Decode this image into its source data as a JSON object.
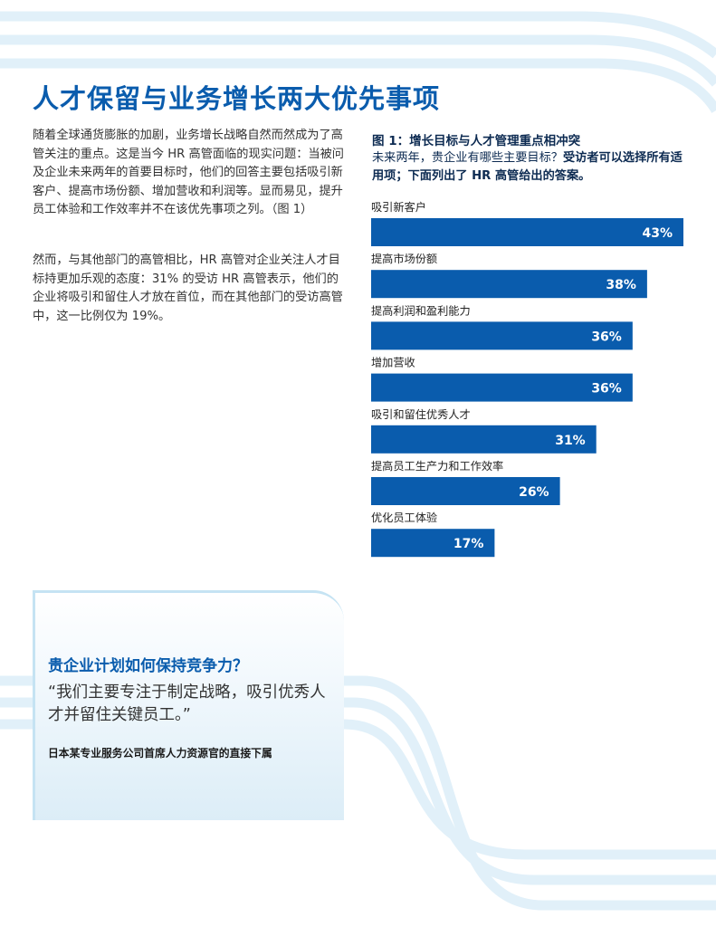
{
  "page": {
    "title": "人才保留与业务增长两大优先事项",
    "paragraphs": [
      "随着全球通货膨胀的加剧，业务增长战略自然而然成为了高管关注的重点。这是当今 HR 高管面临的现实问题：当被问及企业未来两年的首要目标时，他们的回答主要包括吸引新客户、提高市场份额、增加营收和利润等。显而易见，提升员工体验和工作效率并不在该优先事项之列。（图 1）",
      "然而，与其他部门的高管相比，HR 高管对企业关注人才目标持更加乐观的态度：31% 的受访 HR 高管表示，他们的企业将吸引和留住人才放在首位，而在其他部门的受访高管中，这一比例仅为 19%。"
    ]
  },
  "figure": {
    "title": "图 1：增长目标与人才管理重点相冲突",
    "question": "未来两年，贵企业有哪些主要目标？",
    "instruction": "受访者可以选择所有适用项；下面列出了 HR 高管给出的答案。"
  },
  "chart_data": {
    "type": "bar",
    "orientation": "horizontal",
    "categories": [
      "吸引新客户",
      "提高市场份额",
      "提高利润和盈利能力",
      "增加营收",
      "吸引和留住优秀人才",
      "提高员工生产力和工作效率",
      "优化员工体验"
    ],
    "values": [
      43,
      38,
      36,
      36,
      31,
      26,
      17
    ],
    "value_labels": [
      "43%",
      "38%",
      "36%",
      "36%",
      "31%",
      "26%",
      "17%"
    ],
    "unit": "%",
    "bar_color": "#0a5cad",
    "label_color": "#ffffff",
    "xlim": [
      0,
      43
    ],
    "grid": false,
    "legend": "none"
  },
  "callout": {
    "title": "贵企业计划如何保持竞争力？",
    "quote": "“我们主要专注于制定战略，吸引优秀人才并留住关键员工。”",
    "attribution": "日本某专业服务公司首席人力资源官的直接下属"
  },
  "colors": {
    "accent": "#0a5cad",
    "navy": "#0d2b52",
    "decor_stripe": "#e1f0f9"
  }
}
